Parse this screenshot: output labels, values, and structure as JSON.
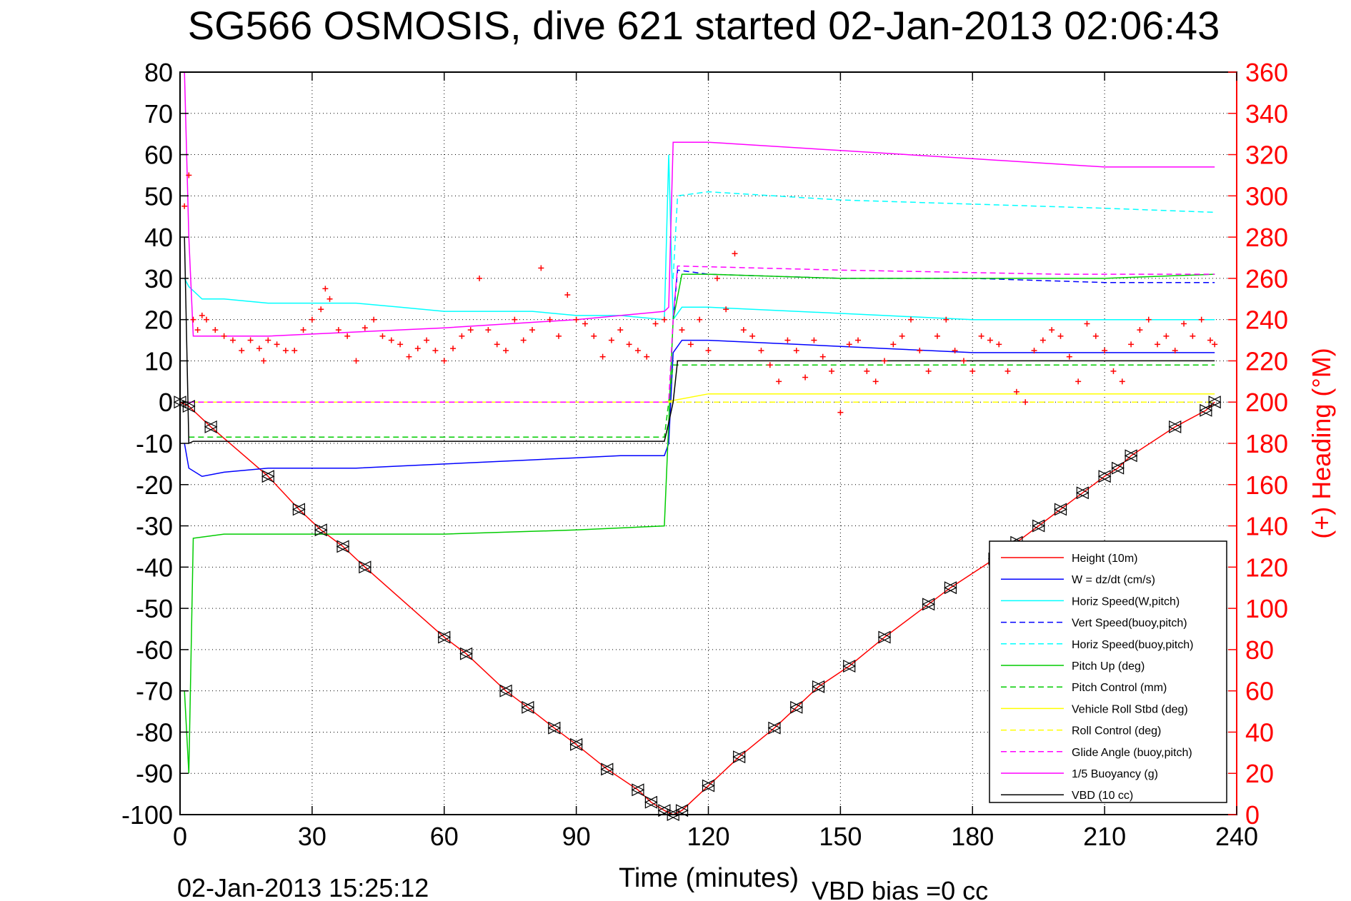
{
  "title": "SG566 OSMOSIS, dive 621 started 02-Jan-2013 02:06:43",
  "footer": {
    "timestamp": "02-Jan-2013 15:25:12",
    "vbd_bias": "VBD bias =0 cc"
  },
  "colors": {
    "height": "#ff0000",
    "w": "#0000ff",
    "horiz_speed": "#00ffff",
    "pitch": "#00cc00",
    "roll": "#ffff00",
    "glide": "#ff00ff",
    "buoyancy": "#ff00ff",
    "vbd": "#000000",
    "heading": "#ff0000"
  },
  "chart_data": {
    "type": "line",
    "title": "SG566 OSMOSIS, dive 621 started 02-Jan-2013 02:06:43",
    "xlabel": "Time (minutes)",
    "ylabel": "",
    "y2label": "(+) Heading (°M)",
    "xlim": [
      0,
      240
    ],
    "ylim": [
      -100,
      80
    ],
    "y2lim": [
      0,
      360
    ],
    "xticks": [
      "0",
      "30",
      "60",
      "90",
      "120",
      "150",
      "180",
      "210",
      "240"
    ],
    "yticks": [
      "80",
      "70",
      "60",
      "50",
      "40",
      "30",
      "20",
      "10",
      "0",
      "-10",
      "-20",
      "-30",
      "-40",
      "-50",
      "-60",
      "-70",
      "-80",
      "-90",
      "-100"
    ],
    "y2ticks": [
      "360",
      "340",
      "320",
      "300",
      "280",
      "260",
      "240",
      "220",
      "200",
      "180",
      "160",
      "140",
      "120",
      "100",
      "80",
      "60",
      "40",
      "20",
      "0"
    ],
    "grid": true,
    "legend_position": "bottom-right",
    "series": [
      {
        "name": "Height (10m)",
        "style": "solid",
        "color": "#ff0000",
        "x": [
          0,
          2,
          7,
          20,
          27,
          32,
          37,
          42,
          60,
          65,
          74,
          79,
          85,
          90,
          97,
          104,
          107,
          110,
          112,
          114,
          120,
          127,
          135,
          140,
          145,
          152,
          160,
          170,
          175,
          185,
          190,
          195,
          200,
          205,
          210,
          213,
          216,
          226,
          233,
          235
        ],
        "y": [
          0,
          -1,
          -6,
          -18,
          -26,
          -31,
          -35,
          -40,
          -57,
          -61,
          -70,
          -74,
          -79,
          -83,
          -89,
          -94,
          -97,
          -99,
          -100,
          -99,
          -93,
          -86,
          -79,
          -74,
          -69,
          -64,
          -57,
          -49,
          -45,
          -38,
          -34,
          -30,
          -26,
          -22,
          -18,
          -16,
          -13,
          -6,
          -2,
          0
        ]
      },
      {
        "name": "W = dz/dt (cm/s)",
        "style": "solid",
        "color": "#0000ff",
        "x": [
          1,
          2,
          5,
          10,
          20,
          30,
          40,
          50,
          60,
          70,
          80,
          90,
          100,
          110,
          111,
          112,
          114,
          120,
          140,
          160,
          180,
          200,
          220,
          235
        ],
        "y": [
          -10,
          -16,
          -18,
          -17,
          -16,
          -16,
          -16,
          -15.5,
          -15,
          -14.5,
          -14,
          -13.5,
          -13,
          -13,
          -10,
          12,
          15,
          15,
          14,
          13,
          12,
          12,
          12,
          12
        ]
      },
      {
        "name": "Horiz Speed(W,pitch)",
        "style": "solid",
        "color": "#00ffff",
        "x": [
          1,
          2,
          5,
          10,
          20,
          30,
          40,
          50,
          60,
          70,
          80,
          90,
          100,
          110,
          111,
          112,
          114,
          120,
          140,
          160,
          180,
          200,
          220,
          235
        ],
        "y": [
          30,
          28,
          25,
          25,
          24,
          24,
          24,
          23,
          22,
          22,
          22,
          21,
          21,
          20,
          60,
          20,
          23,
          23,
          22,
          21,
          20,
          20,
          20,
          20
        ]
      },
      {
        "name": "Vert Speed(buoy,pitch)",
        "style": "dashed",
        "color": "#0000ff",
        "x": [
          112,
          113,
          120,
          150,
          180,
          210,
          235
        ],
        "y": [
          20,
          32,
          31,
          30,
          30,
          29,
          29
        ]
      },
      {
        "name": "Horiz Speed(buoy,pitch)",
        "style": "dashed",
        "color": "#00ffff",
        "x": [
          112,
          113,
          120,
          150,
          180,
          210,
          235
        ],
        "y": [
          30,
          50,
          51,
          49,
          48,
          47,
          46
        ]
      },
      {
        "name": "Pitch Up (deg)",
        "style": "solid",
        "color": "#00cc00",
        "x": [
          1,
          2,
          3,
          10,
          30,
          60,
          90,
          110,
          111,
          112,
          114,
          120,
          150,
          180,
          210,
          235
        ],
        "y": [
          -70,
          -90,
          -33,
          -32,
          -32,
          -32,
          -31,
          -30,
          -5,
          20,
          31,
          31,
          30,
          30,
          30,
          31
        ]
      },
      {
        "name": "Pitch Control (mm)",
        "style": "dashed",
        "color": "#00cc00",
        "x": [
          2,
          3,
          50,
          110,
          111,
          112,
          150,
          200,
          235
        ],
        "y": [
          -8.5,
          -8.5,
          -8.5,
          -8.5,
          0,
          9,
          9,
          9,
          9
        ]
      },
      {
        "name": "Vehicle Roll Stbd (deg)",
        "style": "solid",
        "color": "#ffff00",
        "x": [
          1,
          2,
          20,
          60,
          110,
          120,
          150,
          200,
          235
        ],
        "y": [
          0,
          0,
          0,
          0,
          0,
          2,
          2,
          2,
          2
        ]
      },
      {
        "name": "Roll Control (deg)",
        "style": "dashed",
        "color": "#ffff00",
        "x": [
          1,
          2,
          60,
          110,
          200,
          235
        ],
        "y": [
          0,
          0,
          0,
          0,
          0,
          0
        ]
      },
      {
        "name": "Glide Angle (buoy,pitch)",
        "style": "dashed",
        "color": "#ff00ff",
        "x": [
          2,
          3,
          110,
          111,
          112,
          113,
          150,
          200,
          235
        ],
        "y": [
          0,
          0,
          0,
          0,
          20,
          33,
          32,
          31,
          31
        ]
      },
      {
        "name": "1/5 Buoyancy (g)",
        "style": "solid",
        "color": "#ff00ff",
        "x": [
          1,
          2,
          3,
          20,
          60,
          90,
          110,
          111,
          112,
          120,
          150,
          180,
          210,
          235
        ],
        "y": [
          80,
          40,
          16,
          16,
          18,
          20,
          22,
          23,
          63,
          63,
          61,
          59,
          57,
          57
        ]
      },
      {
        "name": "VBD (10 cc)",
        "style": "solid",
        "color": "#000000",
        "x": [
          1,
          2,
          3,
          60,
          110,
          111,
          112,
          113,
          150,
          200,
          235
        ],
        "y": [
          40,
          -10,
          -9.5,
          -9.5,
          -9.5,
          -5,
          0,
          10,
          10,
          10,
          10
        ]
      }
    ],
    "heading": {
      "name": "Heading",
      "axis": "right",
      "marker": "+",
      "color": "#ff0000",
      "x": [
        1,
        2,
        3,
        4,
        5,
        6,
        8,
        10,
        12,
        14,
        16,
        18,
        19,
        20,
        22,
        24,
        26,
        28,
        30,
        32,
        33,
        34,
        36,
        38,
        40,
        42,
        44,
        46,
        48,
        50,
        52,
        54,
        56,
        58,
        60,
        62,
        64,
        66,
        68,
        70,
        72,
        74,
        76,
        78,
        80,
        82,
        84,
        86,
        88,
        90,
        92,
        94,
        96,
        98,
        100,
        102,
        104,
        106,
        108,
        110,
        114,
        116,
        118,
        120,
        122,
        124,
        126,
        128,
        130,
        132,
        134,
        136,
        138,
        140,
        142,
        144,
        146,
        148,
        150,
        152,
        154,
        156,
        158,
        160,
        162,
        164,
        166,
        168,
        170,
        172,
        174,
        176,
        178,
        180,
        182,
        184,
        186,
        188,
        190,
        192,
        194,
        196,
        198,
        200,
        202,
        204,
        206,
        208,
        210,
        212,
        214,
        216,
        218,
        220,
        222,
        224,
        226,
        228,
        230,
        232,
        234,
        235
      ],
      "y": [
        295,
        310,
        240,
        235,
        242,
        240,
        235,
        232,
        230,
        225,
        230,
        226,
        220,
        230,
        228,
        225,
        225,
        235,
        240,
        245,
        255,
        250,
        235,
        232,
        220,
        236,
        240,
        232,
        230,
        228,
        222,
        226,
        230,
        225,
        220,
        226,
        232,
        235,
        260,
        235,
        228,
        225,
        240,
        230,
        235,
        265,
        240,
        232,
        252,
        240,
        238,
        232,
        222,
        230,
        235,
        228,
        225,
        222,
        238,
        240,
        235,
        228,
        240,
        225,
        260,
        245,
        272,
        235,
        232,
        225,
        218,
        210,
        230,
        225,
        212,
        230,
        222,
        215,
        195,
        228,
        230,
        215,
        210,
        220,
        228,
        232,
        240,
        225,
        215,
        232,
        240,
        225,
        220,
        215,
        232,
        230,
        228,
        215,
        205,
        200,
        225,
        230,
        235,
        232,
        222,
        210,
        238,
        232,
        225,
        215,
        210,
        228,
        235,
        240,
        228,
        232,
        225,
        238,
        232,
        240,
        230,
        228
      ]
    }
  }
}
